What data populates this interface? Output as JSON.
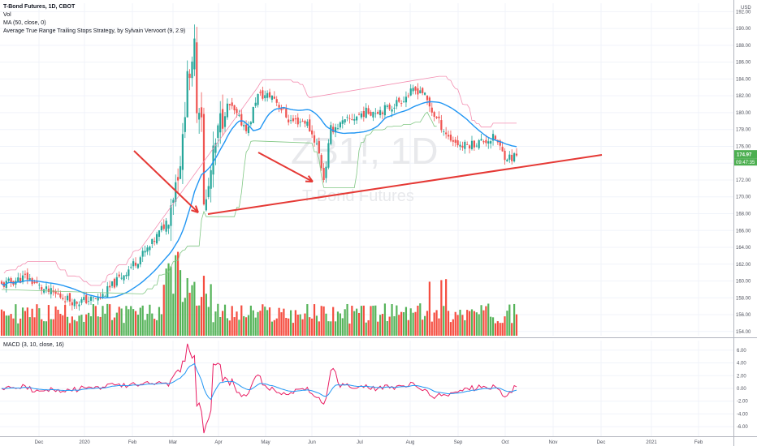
{
  "header": {
    "title": "T-Bond Futures, 1D, CBOT",
    "indicators": [
      "Vol",
      "MA (50, close, 0)",
      "Average True Range Trailing Stops Strategy, by Sylvain Vervoort (9, 2.9)"
    ]
  },
  "currency": "USD",
  "watermark": {
    "symbol": "ZB1!, 1D",
    "name": "T-Bond Futures"
  },
  "price_badge": {
    "price": "174.97",
    "time": "09:47:35"
  },
  "macd_title": "MACD (3, 10, close, 16)",
  "colors": {
    "up": "#26a69a",
    "down": "#ef5350",
    "vol_up": "#4caf50",
    "vol_down": "#f44336",
    "ma": "#2196f3",
    "stop_down": "#f48fb1",
    "stop_up": "#81c784",
    "annotation": "#e53935",
    "macd": "#e91e63",
    "signal": "#2196f3",
    "badge_green": "#4caf50"
  },
  "chart_data": [
    {
      "type": "candlestick",
      "title": "T-Bond Futures, 1D, CBOT",
      "x_ticks": [
        "Dec",
        "2020",
        "Feb",
        "Mar",
        "Apr",
        "May",
        "Jun",
        "Jul",
        "Aug",
        "Sep",
        "Oct",
        "Nov",
        "Dec",
        "2021",
        "Feb"
      ],
      "y_ticks": [
        "154.00",
        "156.00",
        "158.00",
        "160.00",
        "162.00",
        "164.00",
        "166.00",
        "168.00",
        "170.00",
        "172.00",
        "174.00",
        "176.00",
        "178.00",
        "180.00",
        "182.00",
        "184.00",
        "186.00",
        "188.00",
        "190.00",
        "192.00"
      ],
      "ylim": [
        153.5,
        193.0
      ],
      "grid": true,
      "ohlc_keypoints_approx": [
        {
          "x": "Nov 2019",
          "close": 159.5
        },
        {
          "x": "Dec 2019",
          "close": 159.0
        },
        {
          "x": "Jan 2020",
          "close": 158.0
        },
        {
          "x": "Feb 2020",
          "close": 163.5
        },
        {
          "x": "Mar 2020",
          "close": 185.5
        },
        {
          "x": "Apr 2020",
          "close": 181.0
        },
        {
          "x": "May 2020",
          "close": 180.0
        },
        {
          "x": "Jun 2020",
          "close": 174.0
        },
        {
          "x": "Jul 2020",
          "close": 180.0
        },
        {
          "x": "Aug 2020",
          "close": 182.5
        },
        {
          "x": "Sep 2020",
          "close": 176.0
        },
        {
          "x": "Oct 2020",
          "close": 174.97
        }
      ],
      "ma_series": {
        "name": "MA (50, close, 0)",
        "keypoints_approx": [
          161.0,
          158.8,
          161.0,
          166.0,
          172.0,
          178.0,
          179.0,
          179.0,
          179.5,
          180.0,
          177.5
        ]
      },
      "annotations": [
        "red trendline support",
        "three red arrows pointing to lows"
      ]
    },
    {
      "type": "line",
      "title": "MACD (3, 10, close, 16)",
      "y_ticks": [
        "-6.00",
        "-4.00",
        "-2.00",
        "0.00",
        "2.00",
        "4.00",
        "6.00"
      ],
      "ylim": [
        -7.5,
        7.5
      ],
      "series": [
        {
          "name": "MACD",
          "keypoints_approx": [
            -0.5,
            0.5,
            -1.0,
            1.5,
            -1.0,
            1.5,
            2.0,
            3.0,
            7.0,
            -6.5,
            2.0,
            1.0,
            0.5,
            -2.5,
            2.0,
            0.5,
            -0.5,
            0.5,
            -1.0,
            0.3,
            -1.3
          ]
        },
        {
          "name": "Signal",
          "keypoints_approx": [
            -0.3,
            0.0,
            0.0,
            1.0,
            0.5,
            1.0,
            1.5,
            3.5,
            2.0,
            0.5,
            0.3,
            0.0,
            -0.5,
            0.0,
            0.3,
            0.3,
            -0.5,
            0.3,
            -0.5,
            0.0
          ]
        }
      ]
    }
  ]
}
